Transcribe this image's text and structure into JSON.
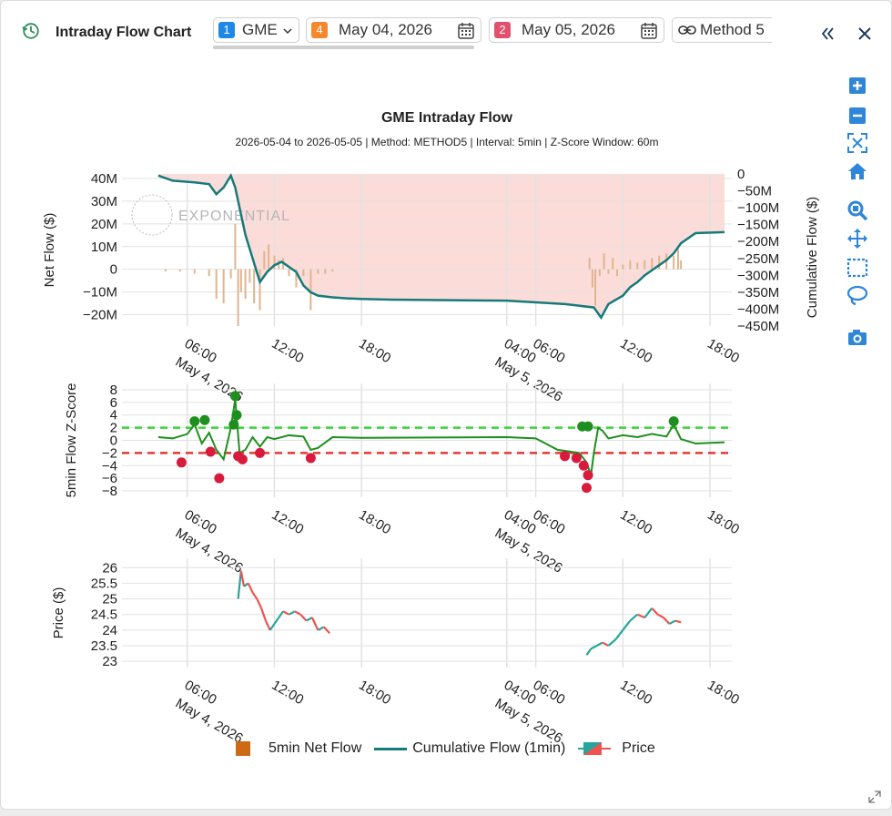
{
  "window": {
    "title": "Intraday Flow Chart"
  },
  "toolbar": {
    "ticker": {
      "badge": "1",
      "value": "GME",
      "color": "#1e88e5"
    },
    "date1": {
      "badge": "4",
      "value": "May 04, 2026",
      "color": "#f5872c"
    },
    "date2": {
      "badge": "2",
      "value": "May 05, 2026",
      "color": "#e2506d"
    },
    "method": {
      "value": "Method 5"
    }
  },
  "chart": {
    "title": "GME Intraday Flow",
    "subtitle": "2026-05-04 to 2026-05-05 | Method: METHOD5 | Interval: 5min | Z-Score Window: 60m",
    "watermark": "EXPONENTIAL",
    "colors": {
      "netflow": "#e0b48e",
      "cumulative": "#167a7a",
      "zpos": "#1e8f1e",
      "zneg": "#d81b3c",
      "band": "#fbd3d0",
      "up": "#26a69a",
      "down": "#ef5350"
    }
  },
  "chart_data": [
    {
      "type": "bar",
      "title": "GME Intraday Flow",
      "ylabel": "Net Flow ($)",
      "y2label": "Cumulative Flow ($)",
      "ylim": [
        -25000000,
        42000000
      ],
      "y2lim": [
        -450000000,
        0
      ],
      "yticks": [
        "40M",
        "30M",
        "20M",
        "10M",
        "0",
        "−10M",
        "−20M"
      ],
      "y2ticks": [
        "0",
        "−50M",
        "−100M",
        "−150M",
        "−200M",
        "−250M",
        "−300M",
        "−350M",
        "−400M",
        "−450M"
      ],
      "xticks": [
        {
          "label": "06:00",
          "sub": "May 4, 2026"
        },
        {
          "label": "12:00"
        },
        {
          "label": "18:00"
        },
        {
          "label": "04:00",
          "sub": "May 5, 2026"
        },
        {
          "label": "06:00"
        },
        {
          "label": "12:00"
        },
        {
          "label": "18:00"
        }
      ],
      "series": [
        {
          "name": "5min Net Flow",
          "type": "bar",
          "note": "bars around zero",
          "x_hours": [
            4.5,
            5.5,
            6.5,
            7.5,
            8.0,
            8.5,
            9.0,
            9.3,
            9.5,
            9.7,
            10.0,
            10.3,
            10.6,
            11.0,
            11.3,
            11.6,
            12.0,
            12.3,
            12.6,
            13.0,
            13.5,
            14.0,
            14.5,
            15.0,
            15.5,
            16.0,
            33.7,
            33.9,
            34.1,
            34.4,
            34.7,
            35.0,
            35.3,
            35.6,
            36.0,
            36.5,
            37.0,
            37.5,
            38.0,
            38.5,
            39.0,
            39.5,
            39.8,
            40.0
          ],
          "values": [
            -1000000,
            -1000000,
            -2000000,
            -3000000,
            -13000000,
            -15000000,
            -4000000,
            20000000,
            -25000000,
            -10000000,
            -13000000,
            -6000000,
            -15000000,
            -18000000,
            8000000,
            11000000,
            6000000,
            4000000,
            5000000,
            -3000000,
            -8000000,
            -3000000,
            -18000000,
            -2000000,
            -2000000,
            -1000000,
            5000000,
            -8000000,
            -16000000,
            -3000000,
            7000000,
            -2000000,
            5000000,
            -3000000,
            2000000,
            4000000,
            3000000,
            4000000,
            5000000,
            6000000,
            7000000,
            6000000,
            9000000,
            4000000
          ]
        },
        {
          "name": "Cumulative Flow (1min)",
          "type": "line",
          "x_hours": [
            4.0,
            5.0,
            6.5,
            7.5,
            8.0,
            8.5,
            9.0,
            9.3,
            9.6,
            10.0,
            10.5,
            11.0,
            11.5,
            12.0,
            12.5,
            13.0,
            13.5,
            14.0,
            14.5,
            15.0,
            16.0,
            17.0,
            18.0,
            20.0,
            28.0,
            32.0,
            34.0,
            34.5,
            35.0,
            36.0,
            36.5,
            37.0,
            37.5,
            38.0,
            38.5,
            39.0,
            39.5,
            40.0,
            41.0,
            43.0
          ],
          "values": [
            -5000000,
            -20000000,
            -25000000,
            -30000000,
            -60000000,
            -40000000,
            -5000000,
            -40000000,
            -100000000,
            -180000000,
            -250000000,
            -320000000,
            -290000000,
            -270000000,
            -260000000,
            -275000000,
            -290000000,
            -330000000,
            -350000000,
            -360000000,
            -365000000,
            -368000000,
            -370000000,
            -372000000,
            -375000000,
            -385000000,
            -395000000,
            -425000000,
            -385000000,
            -360000000,
            -335000000,
            -320000000,
            -300000000,
            -285000000,
            -270000000,
            -255000000,
            -235000000,
            -205000000,
            -175000000,
            -172000000
          ]
        }
      ]
    },
    {
      "type": "line",
      "ylabel": "5min Flow Z-Score",
      "ylim": [
        -9,
        9
      ],
      "yticks": [
        "8",
        "6",
        "4",
        "2",
        "0",
        "−2",
        "−4",
        "−6",
        "−8"
      ],
      "thresholds": [
        2,
        -2
      ],
      "series": [
        {
          "name": "Z-Score",
          "x_hours": [
            4.0,
            5.0,
            6.0,
            6.5,
            7.0,
            7.5,
            8.0,
            8.5,
            9.0,
            9.3,
            9.6,
            10.0,
            10.5,
            11.0,
            11.5,
            12.0,
            13.0,
            14.0,
            14.5,
            15.0,
            16.0,
            18.0,
            28.0,
            30.0,
            31.5,
            33.0,
            33.5,
            33.8,
            34.0,
            34.3,
            34.6,
            35.0,
            36.0,
            37.0,
            38.0,
            39.0,
            39.5,
            40.0,
            41.0,
            43.0
          ],
          "values": [
            0.5,
            0.3,
            1.0,
            2.5,
            -0.5,
            1.2,
            -1.5,
            -3.0,
            2.0,
            6.5,
            -2.0,
            -1.5,
            0.5,
            -1.0,
            0.5,
            0.2,
            0.8,
            0.6,
            -1.5,
            -1.2,
            0.5,
            0.4,
            0.5,
            0.3,
            -1.5,
            -2.0,
            -3.5,
            -5.5,
            -2.0,
            2.0,
            1.5,
            0.3,
            0.8,
            0.5,
            1.0,
            0.6,
            2.5,
            0.2,
            -0.5,
            -0.3
          ]
        },
        {
          "name": "Positive outliers",
          "points": [
            [
              6.5,
              3.0
            ],
            [
              7.2,
              3.2
            ],
            [
              9.3,
              7.0
            ],
            [
              9.4,
              4.0
            ],
            [
              9.2,
              2.5
            ],
            [
              33.2,
              2.2
            ],
            [
              33.6,
              2.2
            ],
            [
              39.5,
              3.0
            ]
          ]
        },
        {
          "name": "Negative outliers",
          "points": [
            [
              5.6,
              -3.5
            ],
            [
              7.6,
              -1.8
            ],
            [
              8.2,
              -6.0
            ],
            [
              9.5,
              -2.5
            ],
            [
              9.8,
              -3.0
            ],
            [
              11.0,
              -2.0
            ],
            [
              14.5,
              -2.8
            ],
            [
              32.0,
              -2.5
            ],
            [
              32.8,
              -2.8
            ],
            [
              33.3,
              -4.0
            ],
            [
              33.6,
              -5.5
            ],
            [
              33.5,
              -7.5
            ]
          ]
        }
      ]
    },
    {
      "type": "line",
      "ylabel": "Price ($)",
      "ylim": [
        22.8,
        26.3
      ],
      "yticks": [
        "26",
        "25.5",
        "25",
        "24.5",
        "24",
        "23.5",
        "23"
      ],
      "series": [
        {
          "name": "Price",
          "x_hours": [
            9.5,
            9.7,
            9.9,
            10.2,
            10.5,
            10.8,
            11.1,
            11.4,
            11.7,
            12.0,
            12.3,
            12.6,
            13.0,
            13.4,
            13.8,
            14.2,
            14.6,
            15.0,
            15.4,
            15.8,
            33.5,
            33.8,
            34.2,
            34.6,
            35.0,
            35.5,
            36.0,
            36.5,
            37.0,
            37.5,
            38.0,
            38.4,
            38.8,
            39.2,
            39.6,
            40.0
          ],
          "values": [
            25.0,
            25.9,
            25.4,
            25.5,
            25.2,
            25.0,
            24.7,
            24.3,
            24.0,
            24.2,
            24.4,
            24.6,
            24.5,
            24.6,
            24.5,
            24.3,
            24.4,
            24.0,
            24.1,
            23.9,
            23.2,
            23.4,
            23.5,
            23.6,
            23.5,
            23.7,
            24.0,
            24.3,
            24.5,
            24.4,
            24.7,
            24.5,
            24.4,
            24.2,
            24.3,
            24.25
          ]
        }
      ]
    }
  ],
  "legend": {
    "items": [
      "5min Net Flow",
      "Cumulative Flow (1min)",
      "Price"
    ]
  }
}
